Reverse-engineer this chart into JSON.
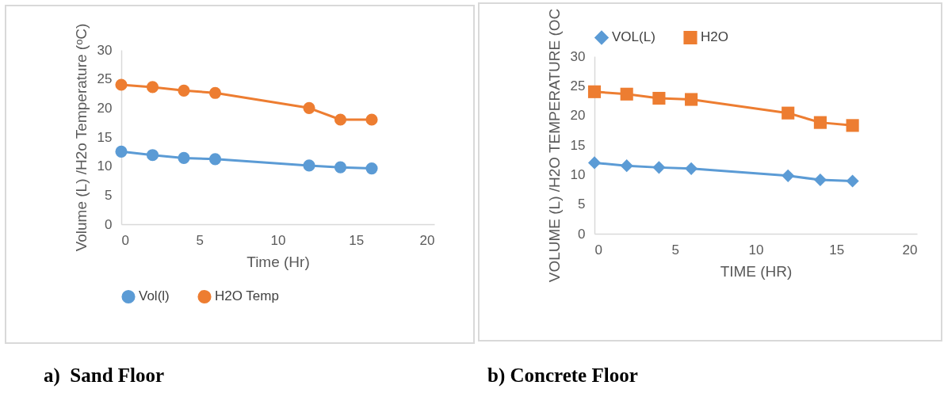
{
  "chart_data": [
    {
      "type": "line",
      "xlabel": "Time (Hr)",
      "ylabel": "Volume (L) /H2o Temperature (ᵒC)",
      "x": [
        0,
        2,
        4,
        6,
        12,
        14,
        16
      ],
      "series": [
        {
          "name": "Vol(l)",
          "color": "#5b9bd5",
          "marker": "circle",
          "values": [
            12.5,
            11.9,
            11.4,
            11.2,
            10.1,
            9.8,
            9.6
          ]
        },
        {
          "name": "H2O Temp",
          "color": "#ed7d31",
          "marker": "circle",
          "values": [
            24,
            23.6,
            23,
            22.6,
            20,
            18,
            18
          ]
        }
      ],
      "xlim": [
        0,
        20
      ],
      "xticks": [
        0,
        5,
        10,
        15,
        20
      ],
      "ylim": [
        0,
        30
      ],
      "yticks": [
        0,
        5,
        10,
        15,
        20,
        25,
        30
      ],
      "grid": false,
      "legend": "bottom",
      "annotations": [
        "a)  Sand Floor"
      ]
    },
    {
      "type": "line",
      "xlabel": "TIME (HR)",
      "ylabel": "VOLUME (L) /H2O TEMPERATURE (OC",
      "x": [
        0,
        2,
        4,
        6,
        12,
        14,
        16
      ],
      "series": [
        {
          "name": "VOL(L)",
          "color": "#5b9bd5",
          "marker": "diamond",
          "values": [
            12,
            11.5,
            11.2,
            11,
            9.8,
            9.1,
            8.9
          ]
        },
        {
          "name": "H2O",
          "color": "#ed7d31",
          "marker": "square",
          "values": [
            24,
            23.6,
            22.9,
            22.7,
            20.4,
            18.8,
            18.3
          ]
        }
      ],
      "xlim": [
        0,
        20
      ],
      "xticks": [
        0,
        5,
        10,
        15,
        20
      ],
      "ylim": [
        0,
        30
      ],
      "yticks": [
        0,
        5,
        10,
        15,
        20,
        25,
        30
      ],
      "grid": false,
      "legend": "top",
      "annotations": [
        "b) Concrete Floor"
      ]
    }
  ]
}
